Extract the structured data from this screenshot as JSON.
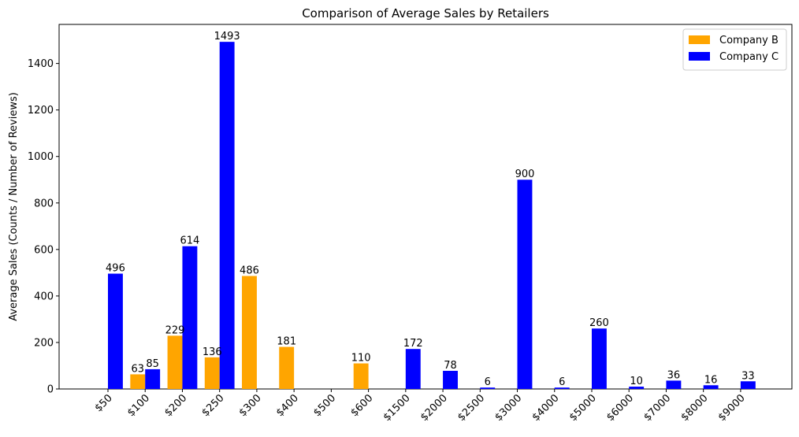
{
  "chart_data": {
    "type": "bar",
    "title": "Comparison of Average Sales by Retailers",
    "xlabel": "",
    "ylabel": "Average Sales (Counts / Number of Reviews)",
    "categories": [
      "$50",
      "$100",
      "$200",
      "$250",
      "$300",
      "$400",
      "$500",
      "$600",
      "$1500",
      "$2000",
      "$2500",
      "$3000",
      "$4000",
      "$5000",
      "$6000",
      "$7000",
      "$8000",
      "$9000"
    ],
    "series": [
      {
        "name": "Company B",
        "color": "#FFA500",
        "values": [
          null,
          63,
          229,
          136,
          486,
          181,
          null,
          110,
          null,
          null,
          null,
          null,
          null,
          null,
          null,
          null,
          null,
          null
        ]
      },
      {
        "name": "Company C",
        "color": "#0000FF",
        "values": [
          496,
          85,
          614,
          1493,
          null,
          null,
          null,
          null,
          172,
          78,
          6,
          900,
          6,
          260,
          10,
          36,
          16,
          33
        ]
      }
    ],
    "ylim": [
      0,
      1568
    ],
    "yticks": [
      0,
      200,
      400,
      600,
      800,
      1000,
      1200,
      1400
    ],
    "grid": false,
    "legend_position": "top-right"
  }
}
